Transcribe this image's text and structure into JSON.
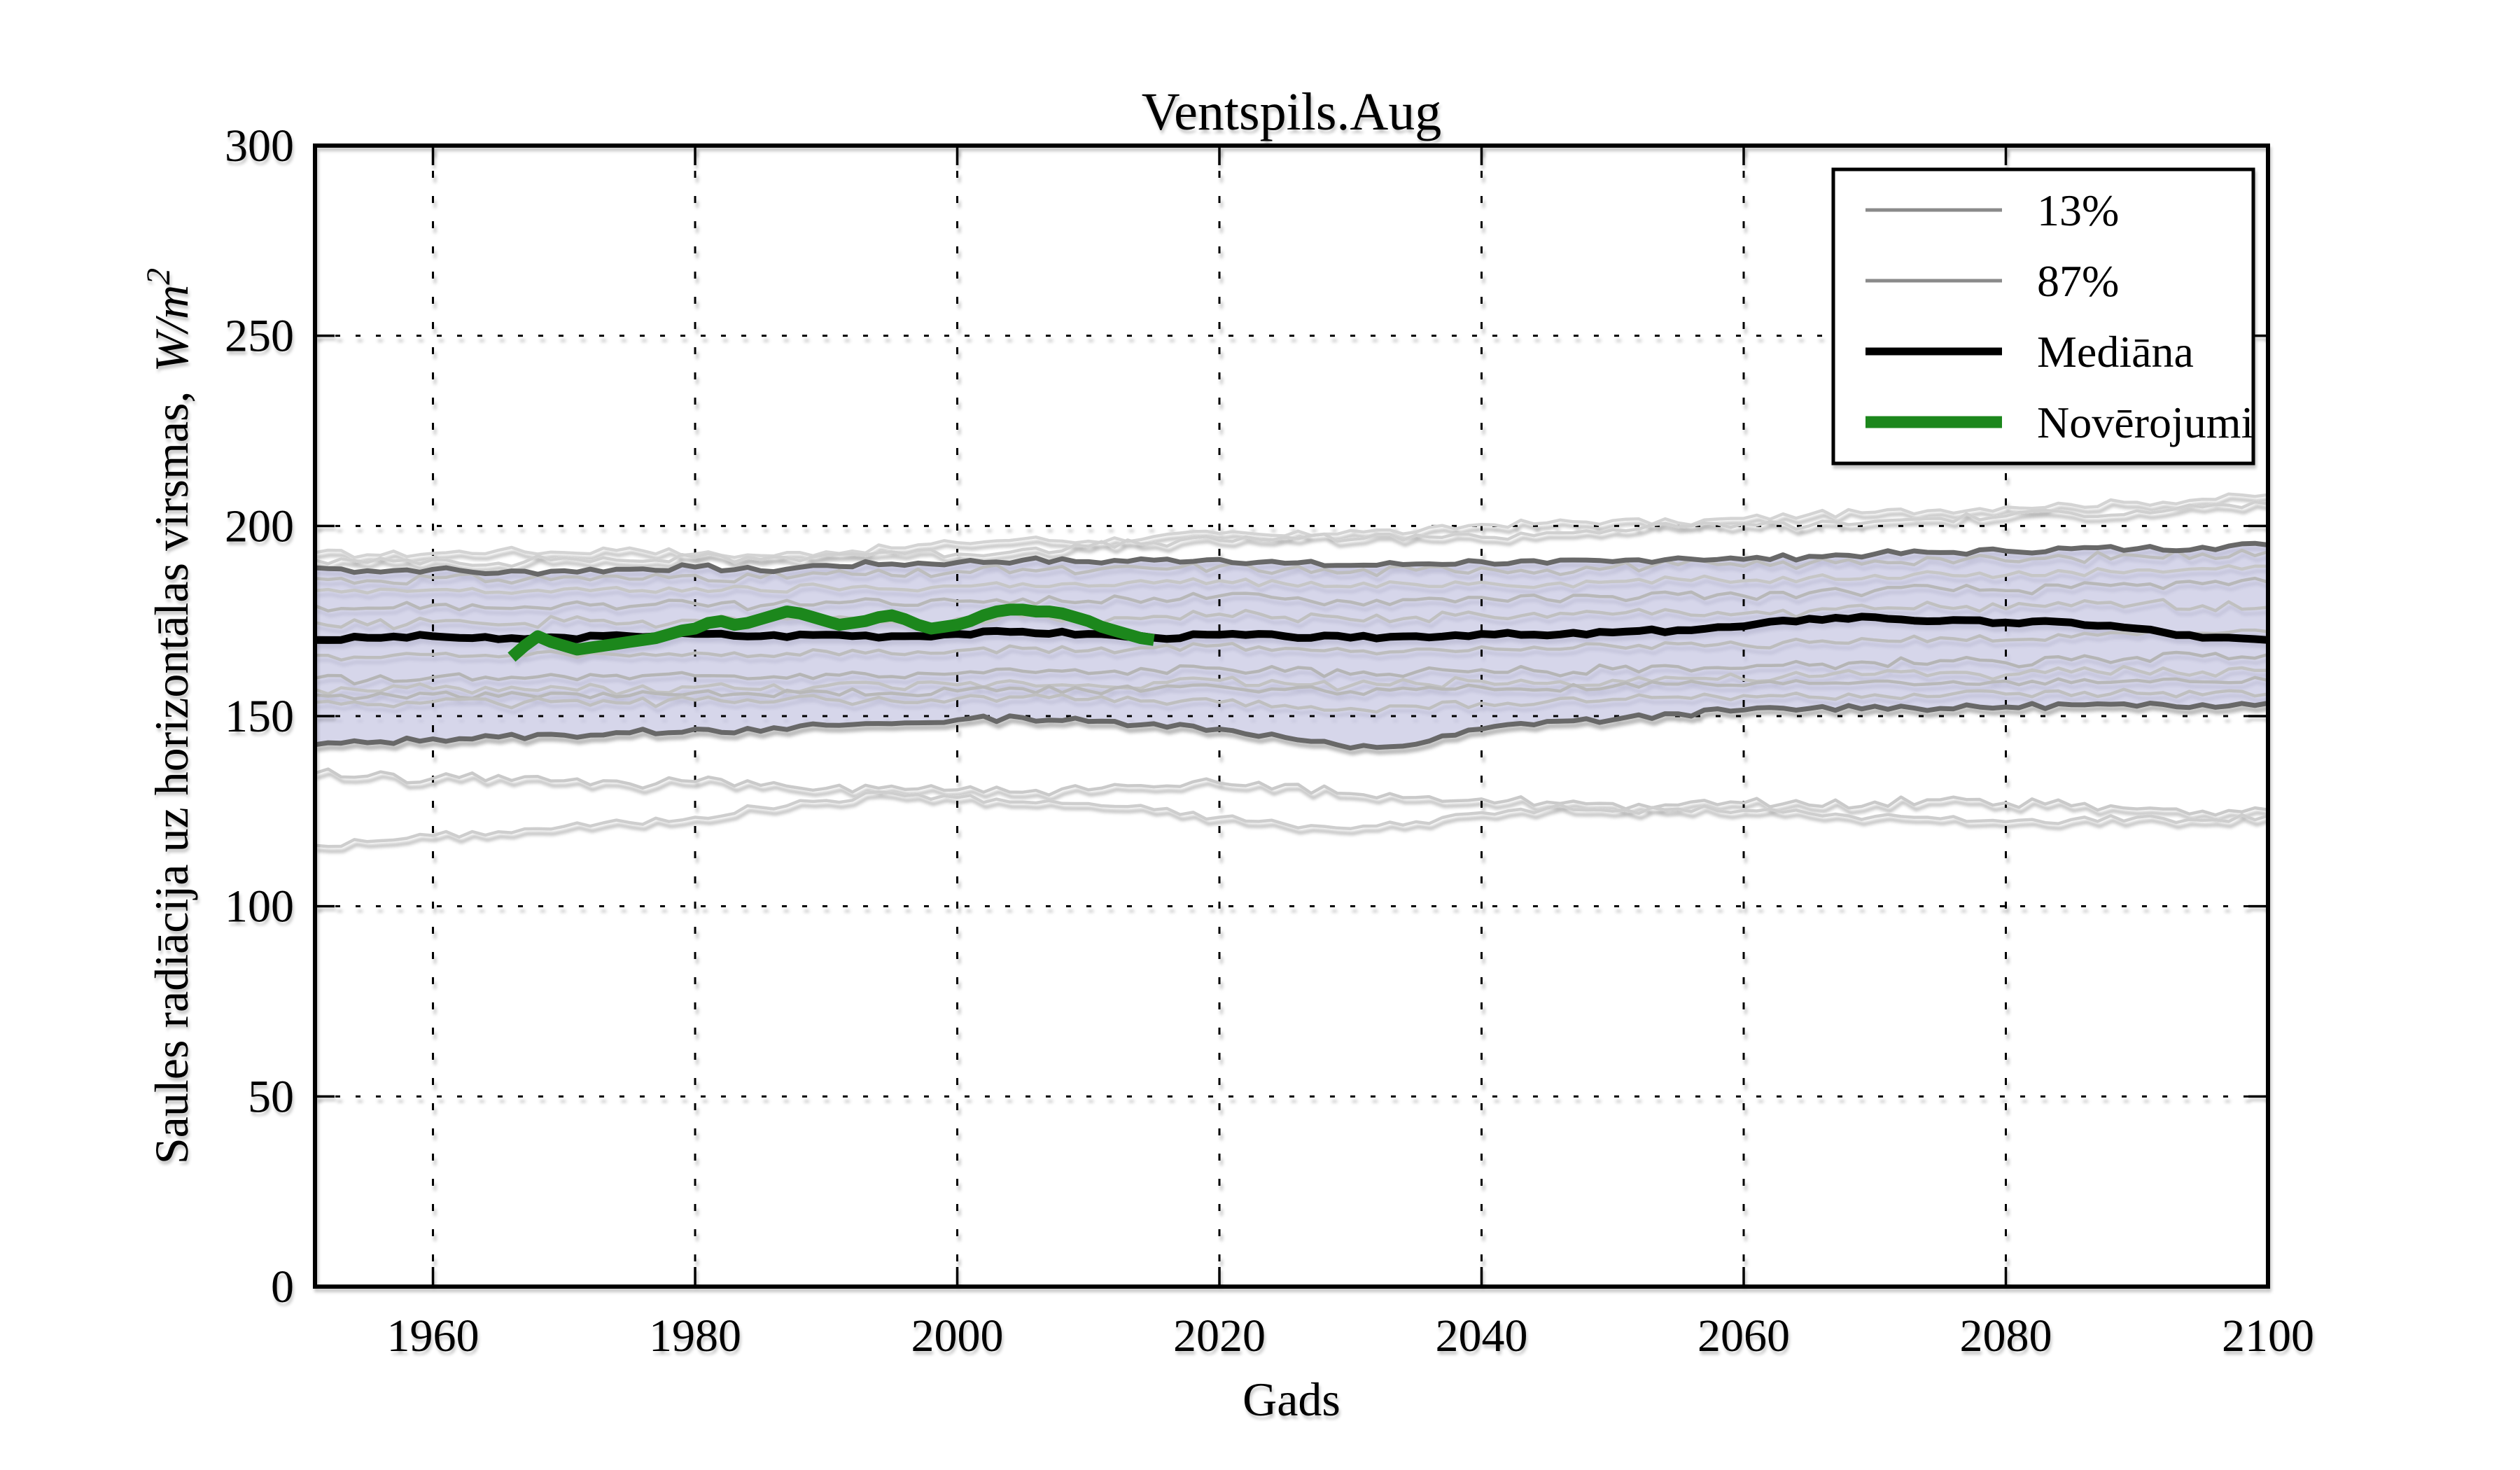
{
  "chart_data": {
    "type": "line",
    "title": "Ventspils.Aug",
    "xlabel": "Gads",
    "ylabel": "Saules radiācija uz horizontālas virsmas, W/m²",
    "ylabel_prefix": "Saules radiācija uz horizontālas virsmas, ",
    "ylabel_math": "W/m",
    "ylabel_sup": "2",
    "axes": {
      "xlim": [
        1951,
        2100
      ],
      "ylim": [
        0,
        300
      ],
      "xticks": [
        1960,
        1980,
        2000,
        2020,
        2040,
        2060,
        2080,
        2100
      ],
      "yticks": [
        0,
        50,
        100,
        150,
        200,
        250,
        300
      ],
      "grid": true,
      "grid_style": "dotted",
      "legend_position": "upper right"
    },
    "legend": [
      {
        "label": "13%",
        "color": "#8a8a8a",
        "line_width": 5
      },
      {
        "label": "87%",
        "color": "#8a8a8a",
        "line_width": 5
      },
      {
        "label": "Mediāna",
        "color": "#000000",
        "line_width": 11
      },
      {
        "label": "Novērojumi",
        "color": "#1a871a",
        "line_width": 17
      }
    ],
    "colors": {
      "band_fill": "#aaaadd",
      "band_fill_opacity": 0.35,
      "band_edge": "#686868",
      "median": "#000000",
      "observations": "#1a871a",
      "ensemble_gray": "#c0c0c0"
    },
    "x_years": [
      1951,
      1955,
      1960,
      1965,
      1970,
      1975,
      1980,
      1985,
      1990,
      1995,
      2000,
      2005,
      2010,
      2015,
      2020,
      2025,
      2030,
      2035,
      2040,
      2045,
      2050,
      2055,
      2060,
      2065,
      2070,
      2075,
      2080,
      2085,
      2090,
      2095,
      2100
    ],
    "percentile_band": {
      "upper_label": "87%",
      "lower_label": "13%",
      "upper": [
        189.0,
        188.2,
        188.6,
        187.6,
        188.2,
        188.6,
        189.2,
        188.2,
        189.6,
        190.0,
        190.4,
        191.0,
        190.6,
        191.0,
        191.2,
        190.2,
        189.6,
        190.0,
        190.6,
        190.2,
        190.6,
        191.6,
        191.2,
        192.0,
        192.6,
        193.0,
        193.4,
        194.0,
        194.0,
        194.4,
        195.0
      ],
      "lower": [
        142.5,
        143.0,
        144.0,
        144.5,
        145.0,
        145.6,
        146.6,
        146.0,
        147.6,
        148.0,
        149.0,
        149.6,
        148.6,
        148.0,
        146.6,
        144.4,
        141.6,
        142.6,
        146.6,
        148.6,
        149.0,
        150.6,
        151.6,
        152.0,
        152.6,
        152.0,
        152.4,
        153.0,
        152.6,
        153.0,
        153.4
      ]
    },
    "median": {
      "label": "Mediāna",
      "values": [
        170.0,
        170.6,
        171.0,
        170.2,
        170.6,
        171.0,
        171.6,
        171.0,
        171.4,
        171.0,
        171.6,
        172.2,
        171.6,
        170.6,
        171.4,
        171.0,
        170.6,
        171.0,
        171.6,
        171.2,
        172.0,
        172.6,
        173.6,
        175.6,
        176.0,
        175.0,
        174.6,
        174.6,
        173.0,
        170.6,
        170.0
      ]
    },
    "observations": {
      "label": "Novērojumi",
      "years_start": 1966,
      "years_end": 2015,
      "values": [
        165.5,
        168.5,
        171.0,
        169.5,
        168.5,
        167.5,
        168.0,
        168.5,
        169.0,
        169.5,
        170.0,
        170.5,
        171.5,
        172.5,
        173.0,
        174.5,
        175.0,
        174.0,
        174.5,
        175.5,
        176.5,
        177.5,
        177.0,
        176.0,
        175.0,
        174.0,
        174.5,
        175.0,
        176.0,
        176.5,
        175.5,
        174.0,
        173.0,
        173.5,
        174.0,
        175.0,
        176.5,
        177.5,
        178.0,
        178.0,
        177.5,
        177.5,
        177.0,
        176.0,
        175.0,
        173.5,
        172.5,
        171.5,
        170.5,
        170.0
      ]
    },
    "ensemble_members": [
      {
        "name": "member-1",
        "color": "#d4d4d4",
        "values": [
          193.0,
          192.4,
          192.8,
          193.6,
          193.0,
          194.2,
          192.6,
          192.2,
          193.2,
          194.2,
          195.6,
          196.6,
          196.0,
          197.2,
          198.0,
          197.4,
          198.8,
          198.4,
          200.4,
          200.8,
          201.4,
          200.8,
          202.0,
          203.0,
          203.6,
          204.2,
          205.0,
          205.6,
          206.2,
          207.0,
          208.2
        ]
      },
      {
        "name": "member-2",
        "color": "#d0d0d0",
        "values": [
          191.0,
          190.4,
          191.2,
          190.2,
          191.6,
          190.8,
          191.8,
          191.2,
          192.4,
          193.2,
          192.6,
          193.8,
          194.6,
          195.6,
          196.2,
          197.0,
          196.4,
          197.6,
          197.0,
          198.2,
          199.0,
          199.8,
          200.6,
          200.0,
          201.2,
          202.0,
          202.6,
          203.4,
          204.0,
          205.0,
          205.8
        ]
      },
      {
        "name": "member-3",
        "color": "#bdbdbd",
        "values": [
          186.2,
          185.6,
          186.4,
          185.8,
          186.6,
          186.0,
          187.0,
          186.4,
          187.4,
          187.0,
          188.0,
          188.6,
          188.0,
          188.8,
          189.4,
          188.6,
          187.8,
          188.4,
          189.0,
          188.4,
          189.2,
          189.8,
          189.4,
          190.2,
          190.8,
          191.4,
          190.8,
          191.6,
          192.2,
          192.6,
          193.2
        ]
      },
      {
        "name": "member-4",
        "color": "#c6c6c6",
        "values": [
          183.0,
          182.4,
          183.2,
          182.6,
          183.4,
          182.8,
          183.6,
          183.0,
          184.0,
          183.4,
          184.2,
          184.8,
          184.2,
          185.0,
          185.6,
          184.8,
          184.0,
          184.6,
          185.2,
          184.6,
          185.4,
          186.0,
          185.6,
          186.4,
          187.0,
          187.6,
          187.0,
          187.8,
          188.4,
          188.8,
          189.4
        ]
      },
      {
        "name": "member-5",
        "color": "#b8b8b8",
        "values": [
          179.0,
          178.4,
          179.2,
          178.4,
          179.4,
          178.8,
          179.6,
          179.0,
          180.0,
          179.4,
          180.2,
          180.8,
          180.2,
          181.0,
          181.6,
          180.8,
          180.0,
          180.6,
          181.2,
          180.6,
          181.4,
          182.0,
          181.6,
          182.4,
          183.0,
          183.6,
          183.0,
          183.8,
          184.4,
          184.8,
          185.2
        ]
      },
      {
        "name": "member-6",
        "color": "#c0c0c0",
        "values": [
          174.6,
          174.0,
          174.8,
          174.0,
          175.0,
          174.4,
          175.2,
          174.6,
          175.4,
          174.8,
          175.6,
          176.2,
          175.6,
          176.2,
          176.8,
          176.0,
          175.4,
          176.0,
          176.6,
          176.0,
          176.8,
          177.4,
          177.0,
          177.6,
          178.2,
          178.8,
          178.2,
          179.0,
          179.4,
          179.0,
          178.6
        ]
      },
      {
        "name": "member-7",
        "color": "#bdbdbd",
        "values": [
          166.0,
          165.4,
          166.2,
          165.6,
          166.4,
          165.8,
          166.6,
          166.0,
          167.0,
          166.4,
          167.2,
          167.8,
          167.2,
          168.0,
          168.6,
          167.8,
          167.0,
          167.6,
          168.2,
          167.6,
          168.4,
          169.0,
          168.6,
          169.4,
          170.0,
          170.6,
          170.0,
          170.8,
          171.4,
          171.8,
          172.2
        ]
      },
      {
        "name": "member-8",
        "color": "#b5b5b5",
        "values": [
          160.0,
          159.4,
          160.2,
          159.6,
          160.4,
          159.8,
          160.6,
          160.0,
          161.0,
          160.4,
          161.2,
          161.8,
          161.2,
          162.0,
          162.6,
          161.8,
          161.0,
          161.6,
          162.2,
          161.6,
          162.4,
          163.0,
          162.6,
          163.4,
          164.0,
          164.6,
          164.0,
          164.8,
          165.4,
          165.8,
          166.2
        ]
      },
      {
        "name": "member-9",
        "color": "#c2c2c2",
        "values": [
          157.0,
          156.6,
          157.2,
          156.6,
          157.4,
          156.8,
          157.6,
          157.0,
          158.0,
          157.4,
          158.2,
          158.8,
          158.2,
          158.8,
          159.4,
          158.6,
          158.0,
          158.6,
          159.2,
          158.6,
          159.4,
          160.0,
          159.6,
          160.4,
          161.0,
          161.4,
          160.8,
          161.6,
          162.0,
          161.6,
          162.0
        ]
      },
      {
        "name": "member-10",
        "color": "#b8b8b8",
        "values": [
          155.6,
          155.0,
          155.8,
          155.2,
          156.0,
          155.4,
          156.2,
          155.6,
          156.4,
          156.0,
          156.6,
          157.2,
          156.6,
          157.2,
          157.8,
          157.0,
          156.4,
          157.0,
          157.6,
          157.0,
          157.8,
          158.4,
          158.0,
          158.6,
          159.2,
          158.6,
          159.2,
          158.8,
          159.4,
          159.0,
          159.4
        ]
      },
      {
        "name": "member-11",
        "color": "#bfbfbf",
        "values": [
          153.6,
          153.0,
          153.8,
          153.2,
          154.0,
          153.4,
          154.2,
          153.6,
          154.4,
          154.0,
          154.6,
          155.0,
          154.4,
          154.0,
          153.6,
          152.8,
          152.0,
          152.6,
          153.4,
          153.8,
          154.4,
          155.0,
          155.4,
          155.0,
          155.6,
          155.2,
          155.8,
          155.4,
          156.0,
          155.6,
          155.8
        ]
      },
      {
        "name": "member-12",
        "color": "#cacaca",
        "values": [
          135.0,
          134.2,
          133.6,
          134.4,
          133.0,
          132.2,
          132.8,
          131.8,
          131.0,
          131.6,
          130.6,
          130.0,
          130.6,
          131.4,
          132.4,
          132.0,
          129.6,
          128.6,
          128.2,
          127.4,
          127.0,
          126.6,
          127.2,
          126.6,
          127.4,
          128.0,
          127.2,
          126.4,
          125.6,
          125.0,
          125.4
        ]
      },
      {
        "name": "member-13",
        "color": "#cecece",
        "values": [
          116.0,
          117.0,
          118.6,
          119.6,
          121.0,
          122.0,
          123.4,
          126.0,
          127.8,
          129.8,
          128.6,
          127.4,
          127.0,
          125.4,
          123.4,
          121.6,
          120.4,
          122.2,
          124.6,
          125.8,
          125.0,
          125.6,
          125.2,
          124.4,
          123.6,
          123.0,
          122.2,
          122.8,
          123.4,
          122.6,
          123.8
        ]
      }
    ]
  }
}
